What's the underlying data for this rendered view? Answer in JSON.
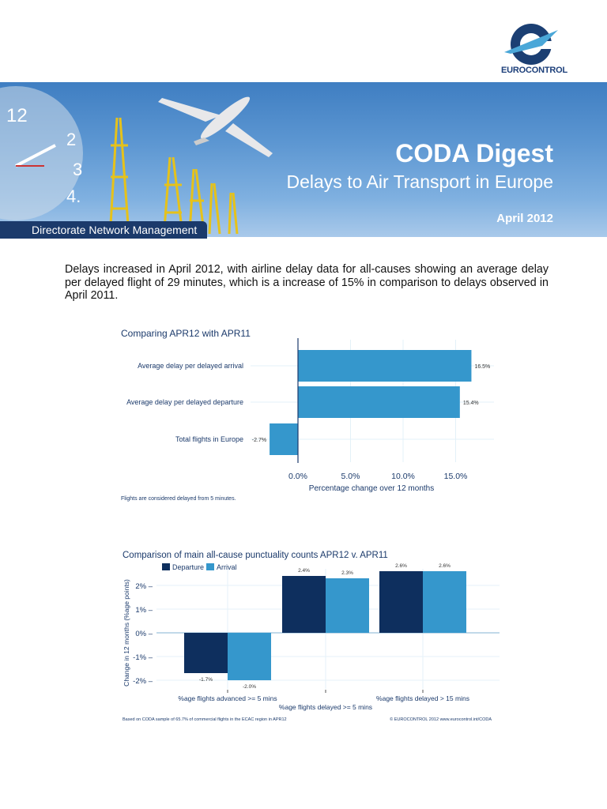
{
  "logo": {
    "text": "EUROCONTROL"
  },
  "header": {
    "title": "CODA Digest",
    "subtitle": "Delays to Air Transport in Europe",
    "date": "April 2012",
    "department": "Directorate Network Management"
  },
  "intro": "Delays increased in April 2012, with airline delay data for all-causes showing an average delay per delayed flight of 29 minutes, which is a increase of 15% in comparison to delays  observed in April 2011.",
  "chart_data": [
    {
      "type": "bar",
      "orientation": "horizontal",
      "title": "Comparing APR12 with APR11",
      "categories": [
        "Average delay per delayed arrival",
        "Average delay per delayed departure",
        "Total flights in Europe"
      ],
      "values": [
        16.5,
        15.4,
        -2.7
      ],
      "data_labels": [
        "16.5%",
        "15.4%",
        "-2.7%"
      ],
      "xlabel": "Percentage change over 12 months",
      "xticks": [
        "0.0%",
        "5.0%",
        "10.0%",
        "15.0%"
      ],
      "xtick_values": [
        0,
        5,
        10,
        15
      ],
      "xlim": [
        -3,
        18.5
      ],
      "grid": true,
      "color": "#3597cc",
      "note": "Flights are considered delayed from 5 minutes."
    },
    {
      "type": "bar",
      "title": "Comparison of main all-cause punctuality counts APR12 v. APR11",
      "categories": [
        "%age flights advanced >= 5 mins",
        "%age flights delayed >= 5 mins",
        "%age flights delayed > 15 mins"
      ],
      "series": [
        {
          "name": "Departure",
          "values": [
            -1.7,
            2.4,
            2.6
          ],
          "labels": [
            "-1.7%",
            "2.4%",
            "2.6%"
          ],
          "color": "#0e2f5e"
        },
        {
          "name": "Arrival",
          "values": [
            -2.0,
            2.3,
            2.6
          ],
          "labels": [
            "-2.0%",
            "2.3%",
            "2.6%"
          ],
          "color": "#3597cc"
        }
      ],
      "ylabel": "Change in 12 months (%age points)",
      "yticks": [
        "2%",
        "1%",
        "0%",
        "-1%",
        "-2%"
      ],
      "ytick_values": [
        2,
        1,
        0,
        -1,
        -2
      ],
      "ylim": [
        -2.3,
        2.9
      ],
      "grid": true,
      "legend": "top-left",
      "footnote_left": "Based on CODA sample of 65.7% of commercial flights in the ECAC region in APR12",
      "footnote_right": "© EUROCONTROL 2012 www.eurocontrol.int/CODA"
    }
  ]
}
